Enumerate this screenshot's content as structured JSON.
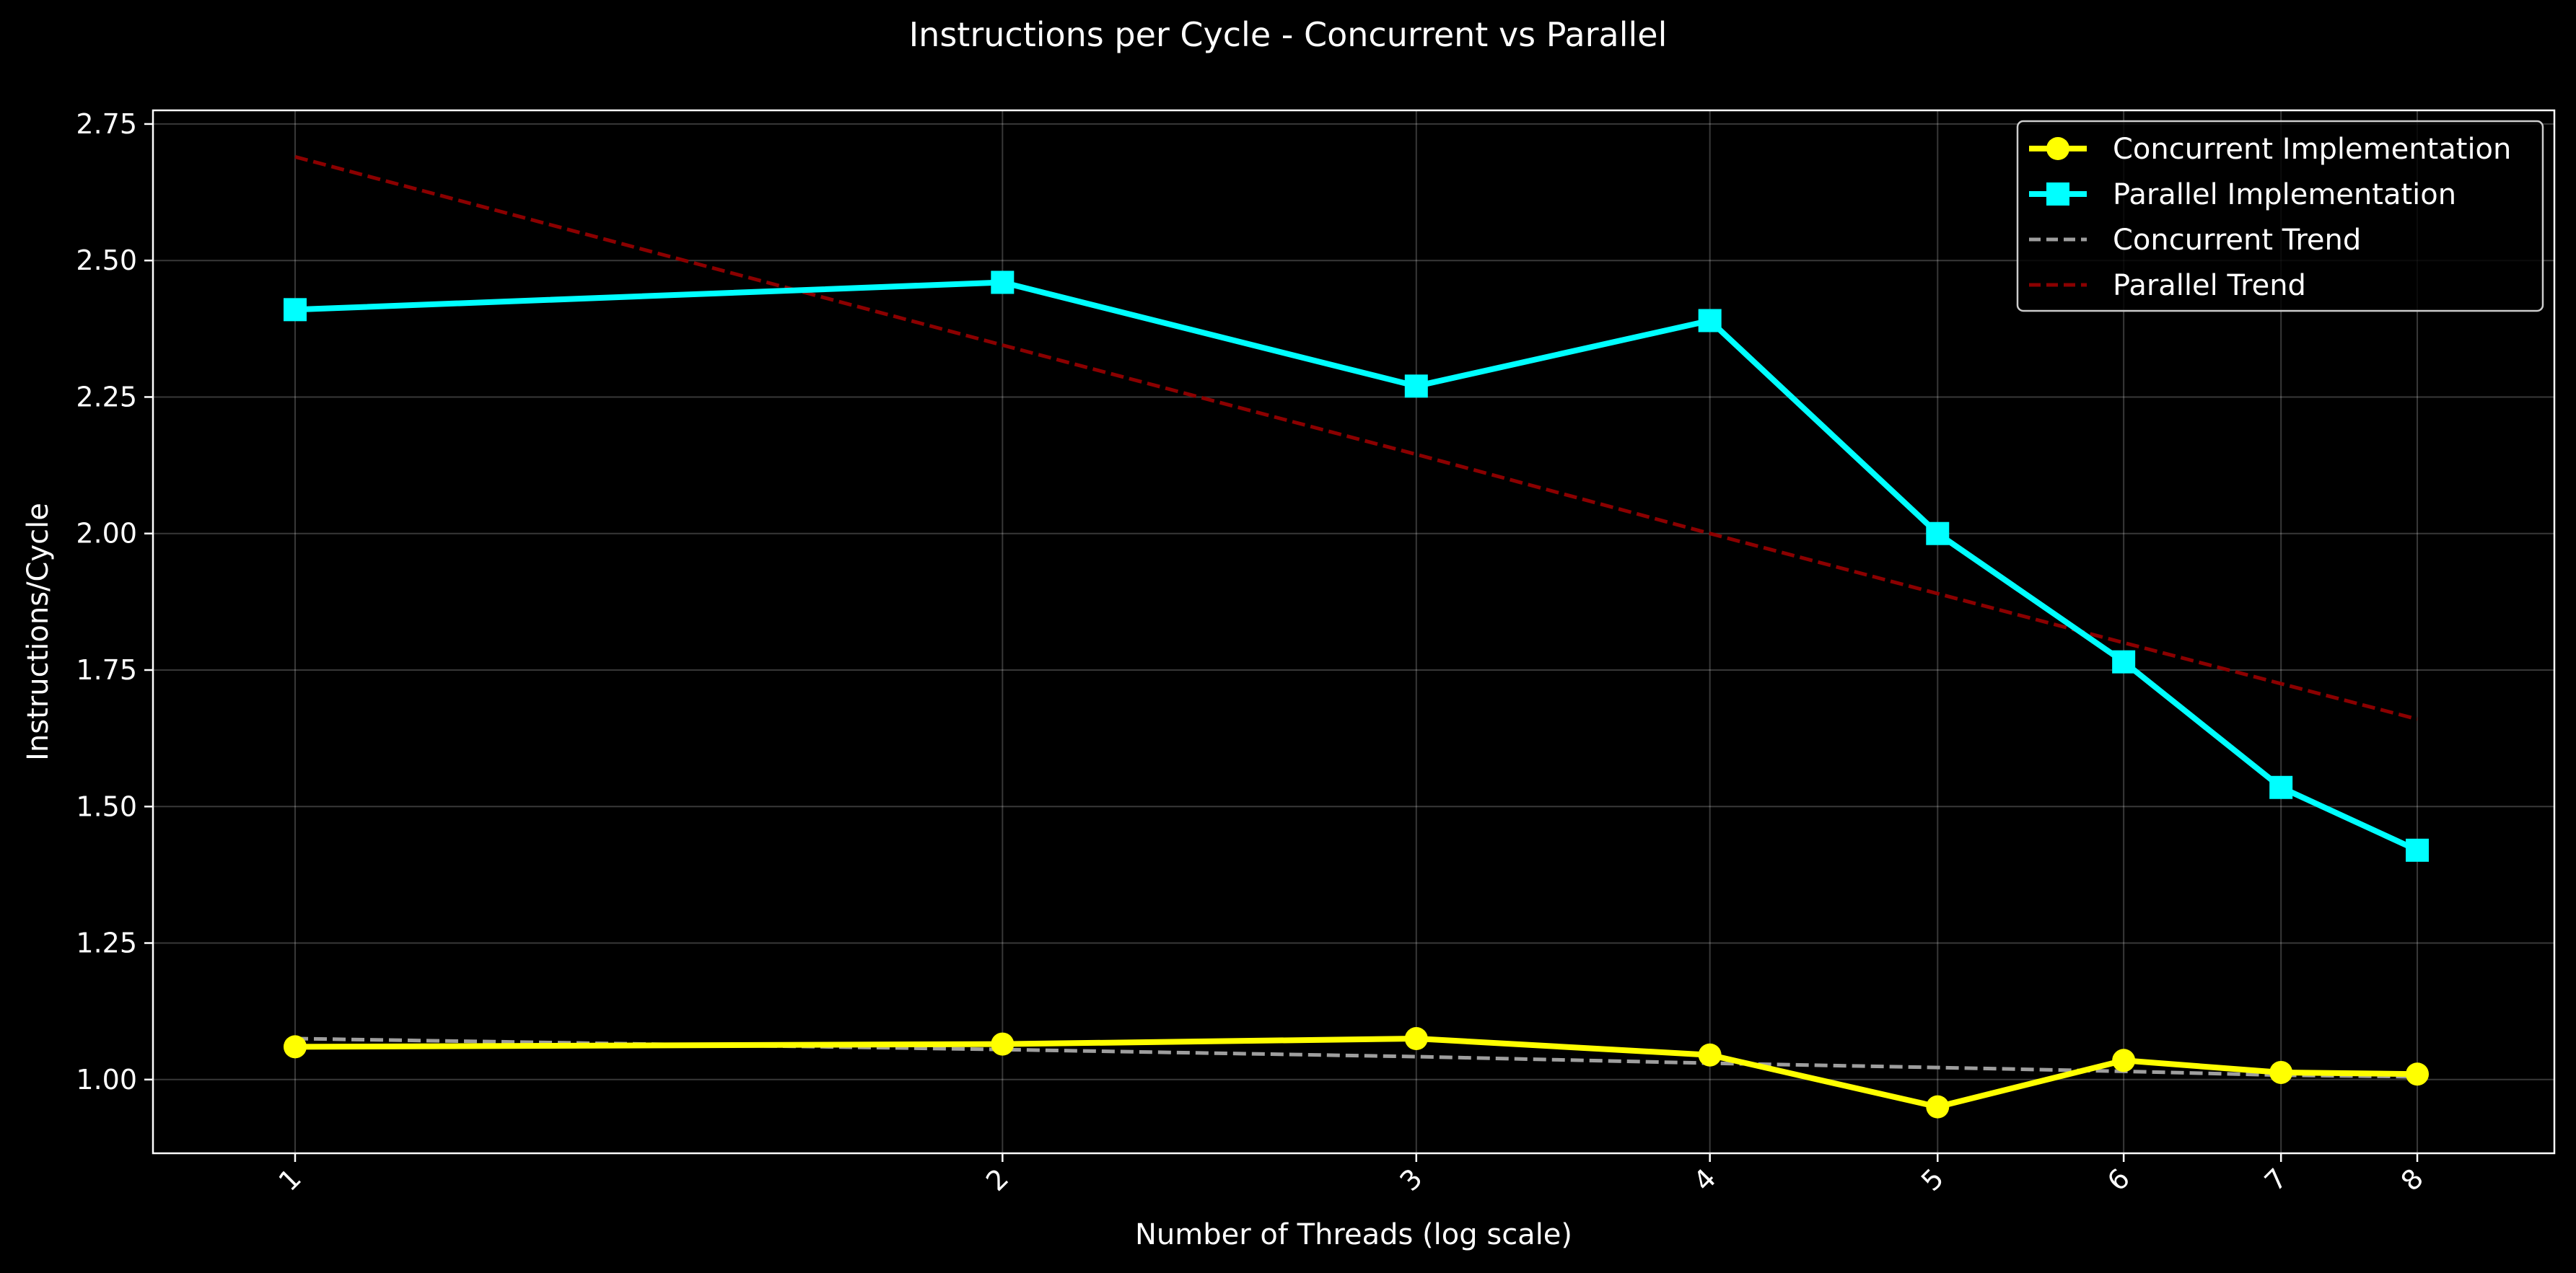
{
  "chart_data": {
    "type": "line",
    "title": "Instructions per Cycle - Concurrent vs Parallel",
    "xlabel": "Number of Threads (log scale)",
    "ylabel": "Instructions/Cycle",
    "x_scale": "log",
    "x": [
      1,
      2,
      3,
      4,
      5,
      6,
      7,
      8
    ],
    "x_tick_labels": [
      "1",
      "2",
      "3",
      "4",
      "5",
      "6",
      "7",
      "8"
    ],
    "xlim": [
      0.87,
      9.15
    ],
    "ylim": [
      0.865,
      2.775
    ],
    "y_ticks": [
      1.0,
      1.25,
      1.5,
      1.75,
      2.0,
      2.25,
      2.5,
      2.75
    ],
    "y_tick_labels": [
      "1.00",
      "1.25",
      "1.50",
      "1.75",
      "2.00",
      "2.25",
      "2.50",
      "2.75"
    ],
    "grid": true,
    "legend_position": "top-right",
    "series": [
      {
        "name": "Concurrent Implementation",
        "style": "solid",
        "marker": "circle",
        "color": "#ffff00",
        "values": [
          1.06,
          1.065,
          1.075,
          1.045,
          0.95,
          1.035,
          1.013,
          1.01
        ]
      },
      {
        "name": "Parallel Implementation",
        "style": "solid",
        "marker": "square",
        "color": "#00ffff",
        "values": [
          2.41,
          2.46,
          2.27,
          2.39,
          2.0,
          1.765,
          1.535,
          1.42
        ]
      },
      {
        "name": "Concurrent Trend",
        "style": "dashed",
        "marker": "none",
        "color": "#9e9e9e",
        "values": [
          1.075,
          1.055,
          1.042,
          1.03,
          1.022,
          1.015,
          1.008,
          1.005
        ]
      },
      {
        "name": "Parallel Trend",
        "style": "dashed",
        "marker": "none",
        "color": "#8b0000",
        "values": [
          2.69,
          2.345,
          2.145,
          2.0,
          1.89,
          1.8,
          1.725,
          1.66
        ]
      }
    ]
  }
}
